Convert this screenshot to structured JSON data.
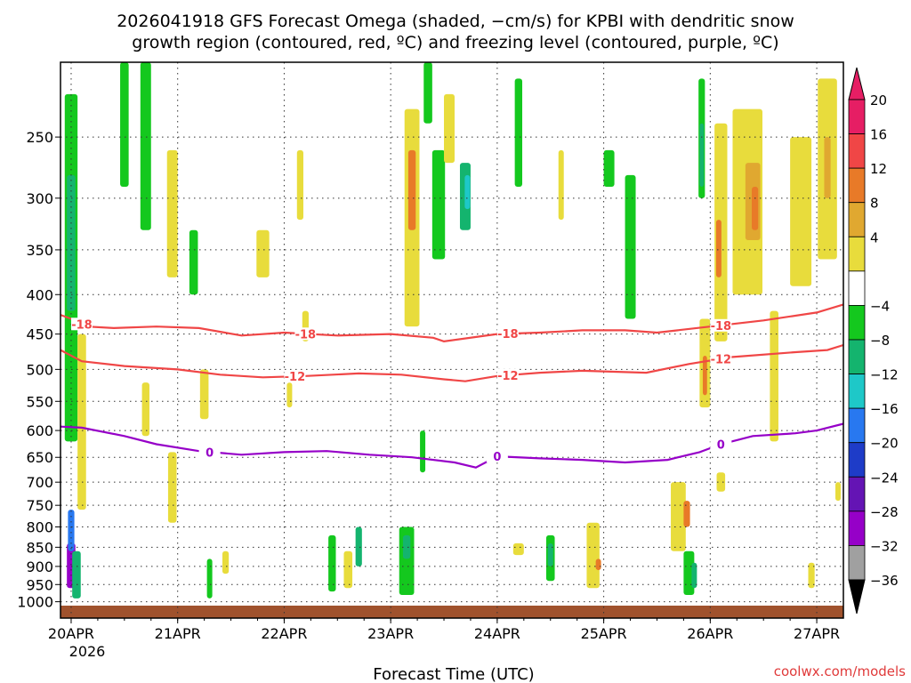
{
  "chart_data": {
    "type": "heatmap",
    "title_line1": "2026041918 GFS Forecast Omega (shaded, −cm/s) for KPBI with dendritic snow",
    "title_line2": "growth region (contoured, red, ºC) and freezing level (contoured, purple, ºC)",
    "xlabel": "Forecast Time (UTC)",
    "credit": "coolwx.com/models",
    "x_ticks": [
      {
        "label": "20APR",
        "day": 0
      },
      {
        "label": "21APR",
        "day": 1
      },
      {
        "label": "22APR",
        "day": 2
      },
      {
        "label": "23APR",
        "day": 3
      },
      {
        "label": "24APR",
        "day": 4
      },
      {
        "label": "25APR",
        "day": 5
      },
      {
        "label": "26APR",
        "day": 6
      },
      {
        "label": "27APR",
        "day": 7
      }
    ],
    "x_year_label": "2026",
    "x_range_days": [
      -0.1,
      7.25
    ],
    "y_axis": {
      "scale": "log",
      "range": [
        1050,
        200
      ],
      "inverted": true
    },
    "y_ticks": [
      250,
      300,
      350,
      400,
      450,
      500,
      550,
      600,
      650,
      700,
      750,
      800,
      850,
      900,
      950,
      1000
    ],
    "colorbar": {
      "labels": [
        "20",
        "16",
        "12",
        "8",
        "4",
        "−4",
        "−8",
        "−12",
        "−16",
        "−20",
        "−24",
        "−28",
        "−32",
        "−36"
      ],
      "colors": [
        "#e61e64",
        "#f04646",
        "#e87a28",
        "#e0a830",
        "#e8dc3c",
        "#ffffff",
        "#14c81e",
        "#14b46e",
        "#1ec8c8",
        "#2878f0",
        "#1e3cc8",
        "#6414b4",
        "#9600c8",
        "#a0a0a0"
      ]
    },
    "surface_color": "#a0522d",
    "contours": [
      {
        "label": "-18",
        "color": "#f04646",
        "points": [
          [
            -0.1,
            425
          ],
          [
            0.0,
            430
          ],
          [
            0.15,
            440
          ],
          [
            0.4,
            442
          ],
          [
            0.8,
            440
          ],
          [
            1.2,
            442
          ],
          [
            1.6,
            452
          ],
          [
            2.0,
            448
          ],
          [
            2.5,
            452
          ],
          [
            3.0,
            450
          ],
          [
            3.4,
            455
          ],
          [
            3.5,
            460
          ],
          [
            4.0,
            450
          ],
          [
            4.4,
            448
          ],
          [
            4.8,
            445
          ],
          [
            5.2,
            445
          ],
          [
            5.5,
            448
          ],
          [
            6.0,
            440
          ],
          [
            6.5,
            432
          ],
          [
            7.0,
            422
          ],
          [
            7.25,
            412
          ]
        ],
        "label_at": [
          [
            0.1,
            "-18"
          ],
          [
            2.2,
            "-18"
          ],
          [
            4.1,
            "-18"
          ],
          [
            6.1,
            "-18"
          ]
        ]
      },
      {
        "label": "-12",
        "color": "#f04646",
        "points": [
          [
            -0.1,
            472
          ],
          [
            0.1,
            488
          ],
          [
            0.5,
            495
          ],
          [
            1.0,
            500
          ],
          [
            1.4,
            508
          ],
          [
            1.8,
            512
          ],
          [
            2.2,
            510
          ],
          [
            2.7,
            506
          ],
          [
            3.1,
            508
          ],
          [
            3.5,
            515
          ],
          [
            3.7,
            518
          ],
          [
            4.0,
            510
          ],
          [
            4.4,
            505
          ],
          [
            4.8,
            502
          ],
          [
            5.4,
            505
          ],
          [
            5.8,
            492
          ],
          [
            6.2,
            482
          ],
          [
            6.8,
            475
          ],
          [
            7.1,
            472
          ],
          [
            7.25,
            465
          ]
        ],
        "label_at": [
          [
            2.1,
            "-12"
          ],
          [
            4.1,
            "-12"
          ],
          [
            6.1,
            "-12"
          ]
        ]
      },
      {
        "label": "0",
        "color": "#9600c8",
        "points": [
          [
            -0.1,
            593
          ],
          [
            0.1,
            595
          ],
          [
            0.5,
            610
          ],
          [
            0.8,
            625
          ],
          [
            1.2,
            638
          ],
          [
            1.6,
            645
          ],
          [
            2.0,
            640
          ],
          [
            2.4,
            638
          ],
          [
            2.8,
            645
          ],
          [
            3.2,
            650
          ],
          [
            3.6,
            660
          ],
          [
            3.8,
            670
          ],
          [
            4.0,
            648
          ],
          [
            4.4,
            652
          ],
          [
            4.8,
            655
          ],
          [
            5.2,
            660
          ],
          [
            5.6,
            655
          ],
          [
            5.9,
            640
          ],
          [
            6.1,
            625
          ],
          [
            6.4,
            610
          ],
          [
            6.8,
            605
          ],
          [
            7.0,
            600
          ],
          [
            7.25,
            588
          ]
        ],
        "label_at": [
          [
            1.3,
            "0"
          ],
          [
            4.0,
            "0"
          ],
          [
            6.1,
            "0"
          ]
        ]
      }
    ],
    "shaded_regions": [
      {
        "color": "#14c81e",
        "t": 0.0,
        "p0": 220,
        "p1": 620,
        "w": 0.12
      },
      {
        "color": "#14b46e",
        "t": 0.0,
        "p0": 280,
        "p1": 420,
        "w": 0.08
      },
      {
        "color": "#e8dc3c",
        "t": 0.1,
        "p0": 450,
        "p1": 760,
        "w": 0.08
      },
      {
        "color": "#9600c8",
        "t": 0.0,
        "p0": 840,
        "p1": 960,
        "w": 0.08
      },
      {
        "color": "#2878f0",
        "t": 0.0,
        "p0": 760,
        "p1": 860,
        "w": 0.06
      },
      {
        "color": "#14b46e",
        "t": 0.05,
        "p0": 860,
        "p1": 990,
        "w": 0.08
      },
      {
        "color": "#14c81e",
        "t": 0.5,
        "p0": 200,
        "p1": 290,
        "w": 0.08
      },
      {
        "color": "#14c81e",
        "t": 0.7,
        "p0": 200,
        "p1": 330,
        "w": 0.1
      },
      {
        "color": "#e8dc3c",
        "t": 0.95,
        "p0": 260,
        "p1": 380,
        "w": 0.1
      },
      {
        "color": "#14c81e",
        "t": 1.15,
        "p0": 330,
        "p1": 400,
        "w": 0.08
      },
      {
        "color": "#e8dc3c",
        "t": 0.95,
        "p0": 640,
        "p1": 790,
        "w": 0.08
      },
      {
        "color": "#e8dc3c",
        "t": 1.25,
        "p0": 500,
        "p1": 580,
        "w": 0.08
      },
      {
        "color": "#14c81e",
        "t": 1.3,
        "p0": 880,
        "p1": 990,
        "w": 0.05
      },
      {
        "color": "#e8dc3c",
        "t": 1.45,
        "p0": 860,
        "p1": 920,
        "w": 0.06
      },
      {
        "color": "#e8dc3c",
        "t": 1.8,
        "p0": 330,
        "p1": 380,
        "w": 0.12
      },
      {
        "color": "#e8dc3c",
        "t": 2.15,
        "p0": 260,
        "p1": 320,
        "w": 0.06
      },
      {
        "color": "#e8dc3c",
        "t": 2.2,
        "p0": 420,
        "p1": 460,
        "w": 0.06
      },
      {
        "color": "#e8dc3c",
        "t": 3.2,
        "p0": 230,
        "p1": 440,
        "w": 0.14
      },
      {
        "color": "#e87a28",
        "t": 3.2,
        "p0": 260,
        "p1": 330,
        "w": 0.07
      },
      {
        "color": "#14c81e",
        "t": 3.35,
        "p0": 200,
        "p1": 240,
        "w": 0.08
      },
      {
        "color": "#14c81e",
        "t": 3.45,
        "p0": 260,
        "p1": 360,
        "w": 0.12
      },
      {
        "color": "#14b46e",
        "t": 3.7,
        "p0": 270,
        "p1": 330,
        "w": 0.1
      },
      {
        "color": "#1ec8c8",
        "t": 3.72,
        "p0": 280,
        "p1": 310,
        "w": 0.05
      },
      {
        "color": "#e8dc3c",
        "t": 3.55,
        "p0": 220,
        "p1": 270,
        "w": 0.1
      },
      {
        "color": "#14c81e",
        "t": 3.15,
        "p0": 800,
        "p1": 980,
        "w": 0.14
      },
      {
        "color": "#14b46e",
        "t": 3.15,
        "p0": 820,
        "p1": 880,
        "w": 0.07
      },
      {
        "color": "#14c81e",
        "t": 2.45,
        "p0": 820,
        "p1": 970,
        "w": 0.07
      },
      {
        "color": "#14b46e",
        "t": 2.7,
        "p0": 800,
        "p1": 900,
        "w": 0.06
      },
      {
        "color": "#e8dc3c",
        "t": 2.6,
        "p0": 860,
        "p1": 960,
        "w": 0.08
      },
      {
        "color": "#14c81e",
        "t": 3.3,
        "p0": 600,
        "p1": 680,
        "w": 0.05
      },
      {
        "color": "#14c81e",
        "t": 4.2,
        "p0": 210,
        "p1": 290,
        "w": 0.07
      },
      {
        "color": "#e8dc3c",
        "t": 4.6,
        "p0": 260,
        "p1": 320,
        "w": 0.05
      },
      {
        "color": "#14c81e",
        "t": 5.25,
        "p0": 280,
        "p1": 430,
        "w": 0.1
      },
      {
        "color": "#14c81e",
        "t": 5.05,
        "p0": 260,
        "p1": 290,
        "w": 0.1
      },
      {
        "color": "#14c81e",
        "t": 4.5,
        "p0": 820,
        "p1": 940,
        "w": 0.08
      },
      {
        "color": "#14b46e",
        "t": 4.5,
        "p0": 840,
        "p1": 900,
        "w": 0.05
      },
      {
        "color": "#e8dc3c",
        "t": 4.2,
        "p0": 840,
        "p1": 870,
        "w": 0.1
      },
      {
        "color": "#e8dc3c",
        "t": 4.9,
        "p0": 790,
        "p1": 960,
        "w": 0.12
      },
      {
        "color": "#e87a28",
        "t": 4.95,
        "p0": 880,
        "p1": 910,
        "w": 0.05
      },
      {
        "color": "#14c81e",
        "t": 5.8,
        "p0": 860,
        "p1": 980,
        "w": 0.1
      },
      {
        "color": "#14b46e",
        "t": 5.85,
        "p0": 890,
        "p1": 960,
        "w": 0.05
      },
      {
        "color": "#e8dc3c",
        "t": 5.7,
        "p0": 700,
        "p1": 860,
        "w": 0.14
      },
      {
        "color": "#e87a28",
        "t": 5.78,
        "p0": 740,
        "p1": 800,
        "w": 0.06
      },
      {
        "color": "#14c81e",
        "t": 5.92,
        "p0": 210,
        "p1": 300,
        "w": 0.06
      },
      {
        "color": "#14b46e",
        "t": 5.92,
        "p0": 240,
        "p1": 290,
        "w": 0.04
      },
      {
        "color": "#e8dc3c",
        "t": 6.1,
        "p0": 240,
        "p1": 460,
        "w": 0.12
      },
      {
        "color": "#e87a28",
        "t": 6.08,
        "p0": 320,
        "p1": 380,
        "w": 0.05
      },
      {
        "color": "#e8dc3c",
        "t": 5.95,
        "p0": 430,
        "p1": 560,
        "w": 0.1
      },
      {
        "color": "#e87a28",
        "t": 5.95,
        "p0": 480,
        "p1": 540,
        "w": 0.04
      },
      {
        "color": "#e8dc3c",
        "t": 6.35,
        "p0": 230,
        "p1": 400,
        "w": 0.28
      },
      {
        "color": "#e0a830",
        "t": 6.4,
        "p0": 270,
        "p1": 340,
        "w": 0.14
      },
      {
        "color": "#e87a28",
        "t": 6.42,
        "p0": 290,
        "p1": 330,
        "w": 0.06
      },
      {
        "color": "#e8dc3c",
        "t": 6.85,
        "p0": 250,
        "p1": 390,
        "w": 0.2
      },
      {
        "color": "#e8dc3c",
        "t": 7.1,
        "p0": 210,
        "p1": 360,
        "w": 0.18
      },
      {
        "color": "#e0a830",
        "t": 7.1,
        "p0": 250,
        "p1": 300,
        "w": 0.06
      },
      {
        "color": "#e8dc3c",
        "t": 6.6,
        "p0": 420,
        "p1": 620,
        "w": 0.08
      },
      {
        "color": "#e8dc3c",
        "t": 6.1,
        "p0": 680,
        "p1": 720,
        "w": 0.08
      },
      {
        "color": "#e8dc3c",
        "t": 7.2,
        "p0": 700,
        "p1": 740,
        "w": 0.05
      },
      {
        "color": "#e8dc3c",
        "t": 6.95,
        "p0": 890,
        "p1": 960,
        "w": 0.06
      },
      {
        "color": "#e8dc3c",
        "t": 0.7,
        "p0": 520,
        "p1": 610,
        "w": 0.07
      },
      {
        "color": "#e8dc3c",
        "t": 2.05,
        "p0": 520,
        "p1": 560,
        "w": 0.05
      }
    ]
  }
}
